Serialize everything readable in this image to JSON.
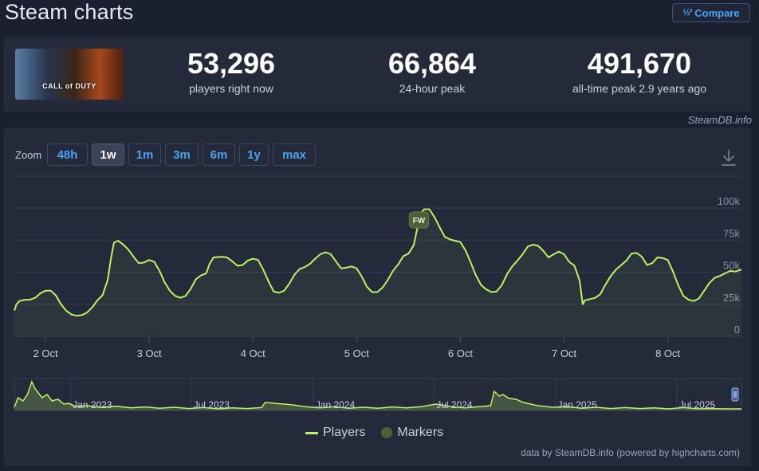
{
  "page": {
    "title": "Steam charts",
    "compare_label": "Compare",
    "compare_icon": "fraction-icon"
  },
  "stats": {
    "game_logo_text": "CALL of DUTY",
    "current": {
      "value": "53,296",
      "label": "players right now"
    },
    "peak24": {
      "value": "66,864",
      "label": "24-hour peak"
    },
    "alltime": {
      "value": "491,670",
      "label": "all-time peak 2.9 years ago"
    }
  },
  "credit": "SteamDB.info",
  "zoom": {
    "label": "Zoom",
    "buttons": [
      "48h",
      "1w",
      "1m",
      "3m",
      "6m",
      "1y",
      "max"
    ],
    "active": "1w"
  },
  "legend": {
    "players": "Players",
    "markers": "Markers"
  },
  "footer": "data by SteamDB.info (powered by highcharts.com)",
  "colors": {
    "line": "#bef264",
    "background": "#1b2030",
    "panel": "#242a3a",
    "accent": "#4aa3f5"
  },
  "chart_data": {
    "type": "line",
    "series_name": "Players",
    "ylim": [
      0,
      100000
    ],
    "y_ticks": [
      0,
      25000,
      50000,
      75000,
      100000
    ],
    "y_tick_labels": [
      "0",
      "25k",
      "50k",
      "75k",
      "100k"
    ],
    "x_ticks": [
      1,
      2,
      3,
      4,
      5,
      6,
      7
    ],
    "x_tick_labels": [
      "2 Oct",
      "3 Oct",
      "4 Oct",
      "5 Oct",
      "6 Oct",
      "7 Oct",
      "8 Oct"
    ],
    "x_range": [
      0.7,
      7.71
    ],
    "grid": true,
    "marker": {
      "label": "FW",
      "x": 4.6
    },
    "points": [
      [
        0.7,
        20000
      ],
      [
        0.72,
        25000
      ],
      [
        0.75,
        27500
      ],
      [
        0.8,
        28500
      ],
      [
        0.85,
        28500
      ],
      [
        0.9,
        30000
      ],
      [
        0.95,
        33500
      ],
      [
        1.0,
        35500
      ],
      [
        1.05,
        35500
      ],
      [
        1.1,
        32000
      ],
      [
        1.15,
        25000
      ],
      [
        1.2,
        20000
      ],
      [
        1.25,
        17000
      ],
      [
        1.3,
        16000
      ],
      [
        1.35,
        16500
      ],
      [
        1.4,
        18500
      ],
      [
        1.45,
        22500
      ],
      [
        1.5,
        28000
      ],
      [
        1.55,
        32000
      ],
      [
        1.6,
        44000
      ],
      [
        1.63,
        60000
      ],
      [
        1.66,
        73000
      ],
      [
        1.7,
        74500
      ],
      [
        1.75,
        71500
      ],
      [
        1.8,
        67500
      ],
      [
        1.85,
        62000
      ],
      [
        1.9,
        57000
      ],
      [
        1.95,
        57500
      ],
      [
        2.0,
        59500
      ],
      [
        2.05,
        58000
      ],
      [
        2.1,
        51000
      ],
      [
        2.15,
        42000
      ],
      [
        2.2,
        35500
      ],
      [
        2.25,
        31500
      ],
      [
        2.3,
        30000
      ],
      [
        2.35,
        31500
      ],
      [
        2.4,
        37000
      ],
      [
        2.45,
        44500
      ],
      [
        2.5,
        47500
      ],
      [
        2.55,
        49000
      ],
      [
        2.58,
        56000
      ],
      [
        2.62,
        61500
      ],
      [
        2.7,
        62000
      ],
      [
        2.75,
        61500
      ],
      [
        2.8,
        58500
      ],
      [
        2.85,
        55000
      ],
      [
        2.9,
        55500
      ],
      [
        2.95,
        59000
      ],
      [
        3.0,
        60500
      ],
      [
        3.05,
        59500
      ],
      [
        3.1,
        52000
      ],
      [
        3.15,
        43000
      ],
      [
        3.2,
        35000
      ],
      [
        3.25,
        34000
      ],
      [
        3.3,
        35500
      ],
      [
        3.35,
        41000
      ],
      [
        3.4,
        48000
      ],
      [
        3.45,
        52500
      ],
      [
        3.5,
        54000
      ],
      [
        3.55,
        56500
      ],
      [
        3.6,
        60500
      ],
      [
        3.65,
        64000
      ],
      [
        3.7,
        65500
      ],
      [
        3.75,
        64000
      ],
      [
        3.8,
        58500
      ],
      [
        3.85,
        53000
      ],
      [
        3.9,
        53500
      ],
      [
        3.95,
        54500
      ],
      [
        4.0,
        53000
      ],
      [
        4.05,
        46500
      ],
      [
        4.1,
        38500
      ],
      [
        4.15,
        34500
      ],
      [
        4.2,
        34500
      ],
      [
        4.25,
        38000
      ],
      [
        4.3,
        44000
      ],
      [
        4.35,
        51000
      ],
      [
        4.4,
        56000
      ],
      [
        4.45,
        62500
      ],
      [
        4.5,
        64500
      ],
      [
        4.55,
        71000
      ],
      [
        4.6,
        90000
      ],
      [
        4.62,
        96000
      ],
      [
        4.65,
        99000
      ],
      [
        4.7,
        99000
      ],
      [
        4.75,
        93000
      ],
      [
        4.8,
        85000
      ],
      [
        4.85,
        77500
      ],
      [
        4.9,
        75500
      ],
      [
        4.95,
        74500
      ],
      [
        5.0,
        73500
      ],
      [
        5.05,
        67000
      ],
      [
        5.1,
        57500
      ],
      [
        5.15,
        47500
      ],
      [
        5.2,
        40000
      ],
      [
        5.25,
        36500
      ],
      [
        5.3,
        34500
      ],
      [
        5.35,
        35000
      ],
      [
        5.4,
        40000
      ],
      [
        5.45,
        48500
      ],
      [
        5.5,
        54500
      ],
      [
        5.55,
        59000
      ],
      [
        5.6,
        64000
      ],
      [
        5.65,
        70000
      ],
      [
        5.7,
        71500
      ],
      [
        5.75,
        70500
      ],
      [
        5.8,
        66500
      ],
      [
        5.85,
        61500
      ],
      [
        5.9,
        64000
      ],
      [
        5.95,
        66000
      ],
      [
        6.0,
        64000
      ],
      [
        6.05,
        58000
      ],
      [
        6.1,
        55000
      ],
      [
        6.15,
        43500
      ],
      [
        6.18,
        25000
      ],
      [
        6.2,
        28000
      ],
      [
        6.25,
        29000
      ],
      [
        6.3,
        30000
      ],
      [
        6.35,
        33000
      ],
      [
        6.4,
        40500
      ],
      [
        6.45,
        47000
      ],
      [
        6.5,
        52000
      ],
      [
        6.55,
        55500
      ],
      [
        6.6,
        59000
      ],
      [
        6.65,
        64500
      ],
      [
        6.7,
        65000
      ],
      [
        6.75,
        62000
      ],
      [
        6.8,
        55500
      ],
      [
        6.85,
        57000
      ],
      [
        6.9,
        61500
      ],
      [
        6.95,
        61000
      ],
      [
        7.0,
        59500
      ],
      [
        7.05,
        50500
      ],
      [
        7.1,
        40000
      ],
      [
        7.15,
        31500
      ],
      [
        7.2,
        28500
      ],
      [
        7.25,
        27500
      ],
      [
        7.3,
        29500
      ],
      [
        7.35,
        35500
      ],
      [
        7.4,
        41500
      ],
      [
        7.45,
        45500
      ],
      [
        7.5,
        47000
      ],
      [
        7.55,
        49000
      ],
      [
        7.6,
        51000
      ],
      [
        7.65,
        50500
      ],
      [
        7.71,
        52000
      ]
    ]
  },
  "navigator": {
    "labels": [
      "Jan 2023",
      "Jul 2023",
      "Jan 2024",
      "Jul 2024",
      "Jan 2025",
      "Jul 2025"
    ],
    "label_positions": [
      0.077,
      0.243,
      0.411,
      0.577,
      0.744,
      0.911
    ],
    "points": [
      [
        0.0,
        0.1
      ],
      [
        0.005,
        0.4
      ],
      [
        0.012,
        0.3
      ],
      [
        0.018,
        0.5
      ],
      [
        0.024,
        0.9
      ],
      [
        0.028,
        0.7
      ],
      [
        0.033,
        0.55
      ],
      [
        0.038,
        0.4
      ],
      [
        0.045,
        0.5
      ],
      [
        0.052,
        0.3
      ],
      [
        0.06,
        0.35
      ],
      [
        0.068,
        0.2
      ],
      [
        0.075,
        0.22
      ],
      [
        0.085,
        0.12
      ],
      [
        0.1,
        0.15
      ],
      [
        0.12,
        0.1
      ],
      [
        0.14,
        0.13
      ],
      [
        0.16,
        0.08
      ],
      [
        0.18,
        0.11
      ],
      [
        0.2,
        0.07
      ],
      [
        0.22,
        0.1
      ],
      [
        0.24,
        0.06
      ],
      [
        0.26,
        0.09
      ],
      [
        0.28,
        0.05
      ],
      [
        0.3,
        0.08
      ],
      [
        0.32,
        0.06
      ],
      [
        0.34,
        0.09
      ],
      [
        0.345,
        0.25
      ],
      [
        0.36,
        0.22
      ],
      [
        0.38,
        0.18
      ],
      [
        0.4,
        0.12
      ],
      [
        0.42,
        0.08
      ],
      [
        0.44,
        0.12
      ],
      [
        0.46,
        0.07
      ],
      [
        0.48,
        0.1
      ],
      [
        0.5,
        0.07
      ],
      [
        0.52,
        0.11
      ],
      [
        0.54,
        0.08
      ],
      [
        0.56,
        0.12
      ],
      [
        0.58,
        0.2
      ],
      [
        0.6,
        0.12
      ],
      [
        0.62,
        0.08
      ],
      [
        0.64,
        0.12
      ],
      [
        0.655,
        0.15
      ],
      [
        0.66,
        0.6
      ],
      [
        0.667,
        0.45
      ],
      [
        0.672,
        0.5
      ],
      [
        0.68,
        0.38
      ],
      [
        0.69,
        0.35
      ],
      [
        0.7,
        0.25
      ],
      [
        0.72,
        0.15
      ],
      [
        0.74,
        0.1
      ],
      [
        0.76,
        0.12
      ],
      [
        0.78,
        0.07
      ],
      [
        0.8,
        0.1
      ],
      [
        0.82,
        0.06
      ],
      [
        0.84,
        0.09
      ],
      [
        0.86,
        0.06
      ],
      [
        0.88,
        0.08
      ],
      [
        0.9,
        0.05
      ],
      [
        0.92,
        0.09
      ],
      [
        0.94,
        0.05
      ],
      [
        0.96,
        0.06
      ],
      [
        0.98,
        0.05
      ],
      [
        1.0,
        0.05
      ]
    ]
  }
}
